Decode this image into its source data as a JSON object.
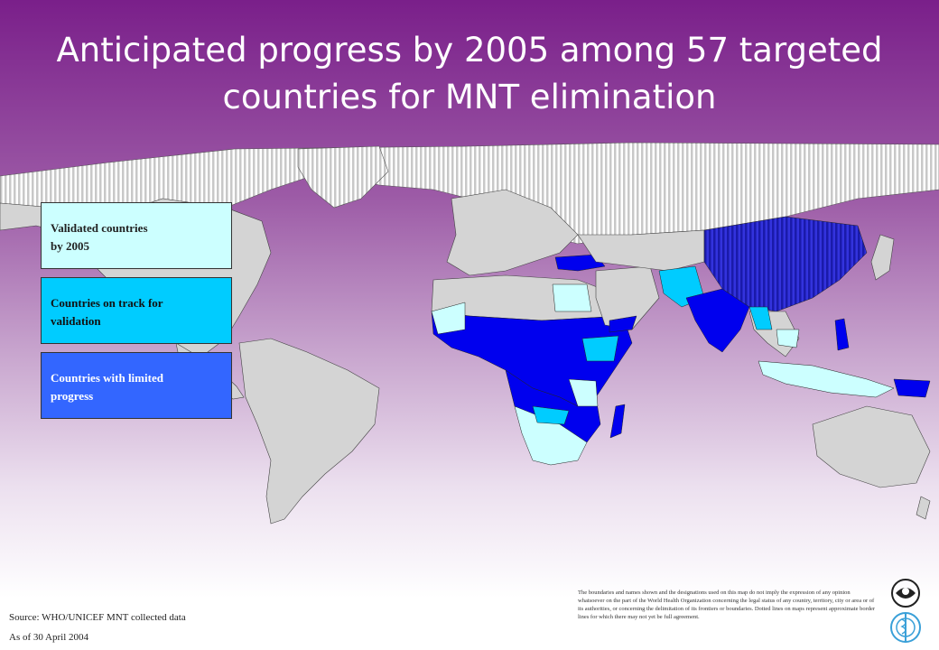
{
  "title": "Anticipated progress by 2005 among 57 targeted countries for MNT elimination",
  "legend": {
    "validated": "Validated countries\n by 2005",
    "on_track": "Countries on track for\n validation",
    "limited": "Countries with limited\n progress"
  },
  "colors": {
    "validated": "#ccffff",
    "on_track": "#00ccff",
    "limited": "#3366ff",
    "strong_blue": "#0000ee",
    "land": "#d4d4d4",
    "ocean": "#ffffff"
  },
  "source": "Source: WHO/UNICEF MNT collected data",
  "as_of": "As of 30 April  2004",
  "disclaimer": "The boundaries and names shown and the designations used on this map do not imply the expression of any opinion whatsoever on the part of the World Health Organization concerning the legal status of any country, territory, city or area or of its authorities, or concerning the delimitation of its frontiers or boundaries. Dotted lines on maps represent approximate border lines for which there may not yet be full agreement.",
  "logos": [
    "unicef-logo",
    "who-logo"
  ]
}
